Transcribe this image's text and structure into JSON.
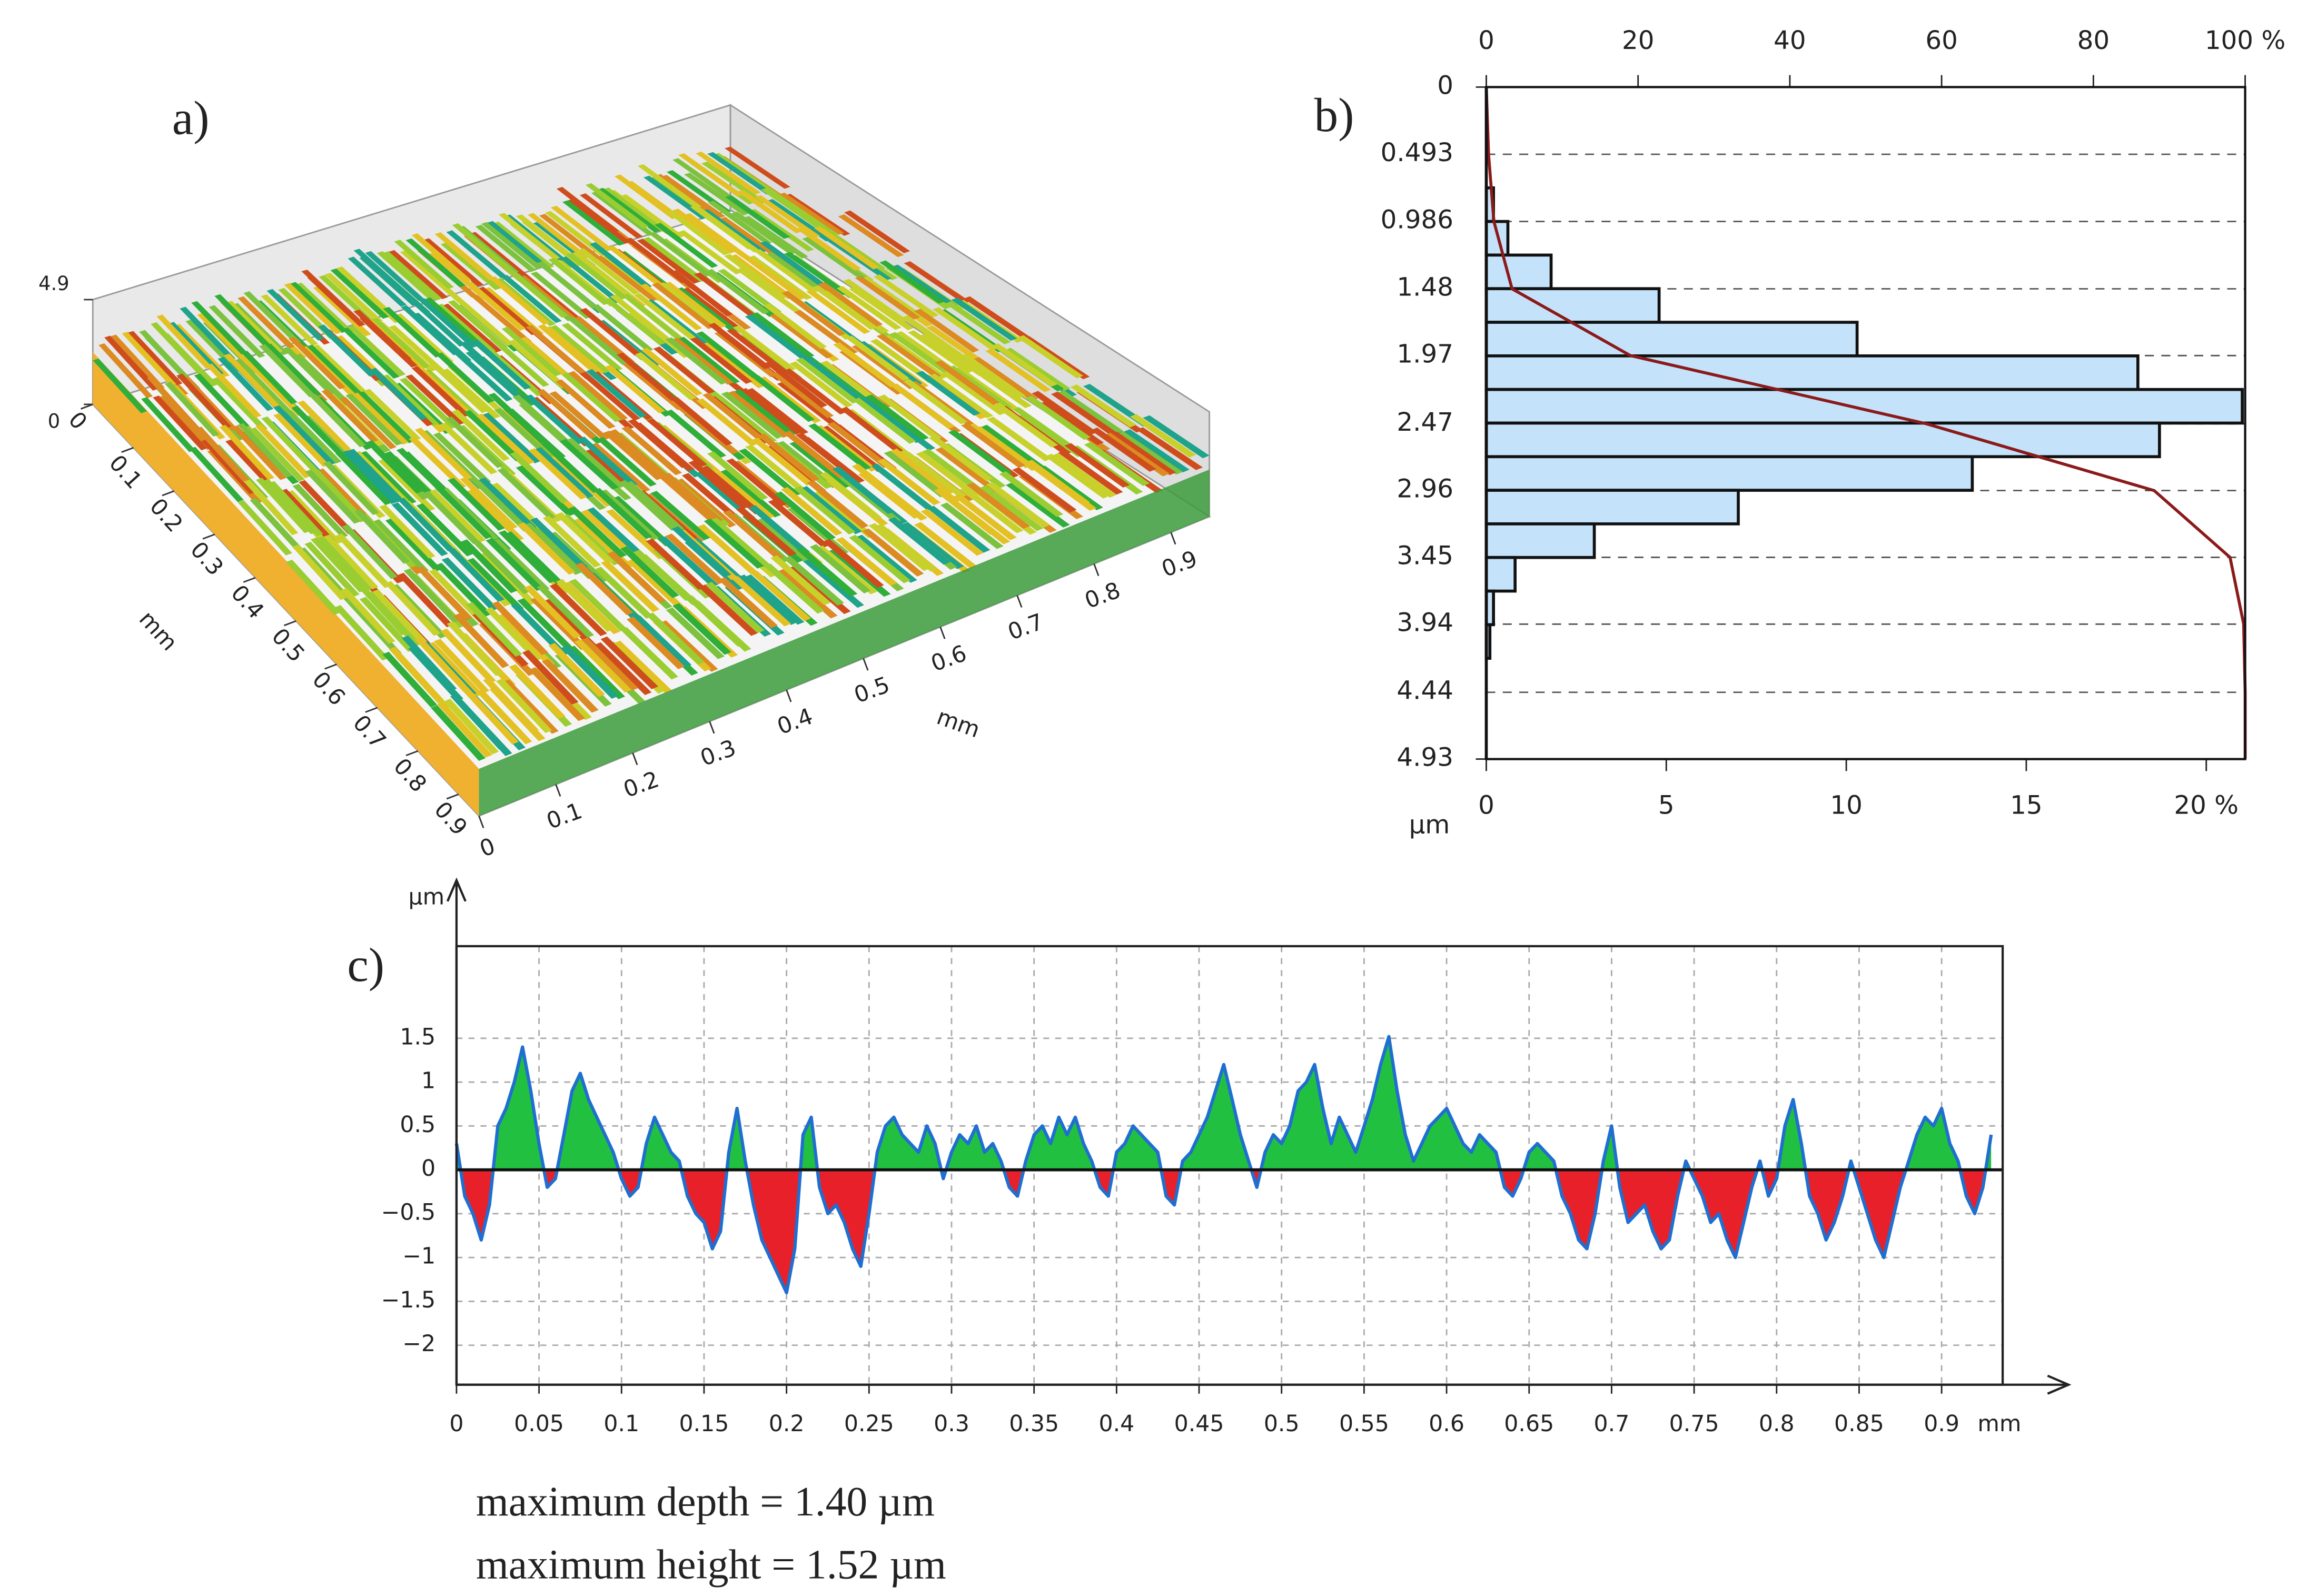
{
  "chart_data": [
    {
      "type": "surface3d",
      "panel_label": "a)",
      "xlim": [
        0,
        0.95
      ],
      "ylim": [
        0,
        0.95
      ],
      "zlim": [
        0,
        4.9
      ],
      "xticks": [
        0,
        0.1,
        0.2,
        0.3,
        0.4,
        0.5,
        0.6,
        0.7,
        0.8,
        0.9
      ],
      "yticks": [
        0,
        0.1,
        0.2,
        0.3,
        0.4,
        0.5,
        0.6,
        0.7,
        0.8,
        0.9
      ],
      "zticks": [
        0,
        4.9
      ],
      "xlabel": "mm",
      "ylabel": "mm"
    },
    {
      "type": "histogram",
      "panel_label": "b)",
      "orientation": "horizontal",
      "color": "#c4e3fb",
      "bins": [
        0,
        0.2465,
        0.493,
        0.7395,
        0.986,
        1.2325,
        1.479,
        1.7255,
        1.972,
        2.2185,
        2.465,
        2.7115,
        2.958,
        3.2045,
        3.451,
        3.6975,
        3.944,
        4.1905,
        4.437,
        4.6835,
        4.93
      ],
      "values": [
        0,
        0,
        0,
        0.2,
        0.6,
        1.8,
        4.8,
        10.3,
        18.1,
        21.0,
        18.7,
        13.5,
        7.0,
        3.0,
        0.8,
        0.2,
        0.1,
        0,
        0,
        0
      ],
      "ylim": [
        0,
        4.93
      ],
      "yticks": [
        0,
        0.493,
        0.986,
        1.48,
        1.97,
        2.47,
        2.96,
        3.45,
        3.94,
        4.44,
        4.93
      ],
      "ylabel": "µm",
      "xlim": [
        0,
        21.08
      ],
      "xticks": [
        0,
        5,
        10,
        15,
        {
          "value": 20,
          "label": "20 %"
        }
      ],
      "x2lim": [
        0,
        100
      ],
      "x2ticks": [
        0,
        20,
        40,
        60,
        80,
        {
          "value": 100,
          "label": "100 %"
        }
      ],
      "curve": {
        "color": "#8b1a1a",
        "axis": "x2",
        "y": [
          0,
          0.493,
          0.986,
          1.48,
          1.97,
          2.47,
          2.96,
          3.45,
          3.94,
          4.44,
          4.93
        ],
        "values": [
          0,
          0.3,
          1,
          3.4,
          19,
          58,
          88,
          98,
          99.8,
          100,
          100
        ]
      },
      "grid": true
    },
    {
      "type": "profile",
      "panel_label": "c)",
      "color": "#1f6fd0",
      "fill_above": "#22c040",
      "fill_below": "#e8202a",
      "xlim": [
        0,
        0.937
      ],
      "ylim": [
        -2.45,
        2.55
      ],
      "xticks": [
        0,
        0.05,
        0.1,
        0.15,
        0.2,
        0.25,
        0.3,
        0.35,
        0.4,
        0.45,
        0.5,
        0.55,
        0.6,
        0.65,
        0.7,
        0.75,
        0.8,
        0.85,
        0.9
      ],
      "yticks": [
        {
          "value": -2,
          "label": "−2"
        },
        {
          "value": -1.5,
          "label": "−1.5"
        },
        {
          "value": -1,
          "label": "−1"
        },
        {
          "value": -0.5,
          "label": "−0.5"
        },
        0,
        0.5,
        1,
        1.5
      ],
      "xlabel": "mm",
      "ylabel": "µm",
      "grid": true,
      "x": [
        0,
        0.005,
        0.01,
        0.015,
        0.02,
        0.025,
        0.03,
        0.035,
        0.04,
        0.045,
        0.05,
        0.055,
        0.06,
        0.065,
        0.07,
        0.075,
        0.08,
        0.085,
        0.09,
        0.095,
        0.1,
        0.105,
        0.11,
        0.115,
        0.12,
        0.125,
        0.13,
        0.135,
        0.14,
        0.145,
        0.15,
        0.155,
        0.16,
        0.165,
        0.17,
        0.175,
        0.18,
        0.185,
        0.19,
        0.195,
        0.2,
        0.205,
        0.21,
        0.215,
        0.22,
        0.225,
        0.23,
        0.235,
        0.24,
        0.245,
        0.25,
        0.255,
        0.26,
        0.265,
        0.27,
        0.275,
        0.28,
        0.285,
        0.29,
        0.295,
        0.3,
        0.305,
        0.31,
        0.315,
        0.32,
        0.325,
        0.33,
        0.335,
        0.34,
        0.345,
        0.35,
        0.355,
        0.36,
        0.365,
        0.37,
        0.375,
        0.38,
        0.385,
        0.39,
        0.395,
        0.4,
        0.405,
        0.41,
        0.415,
        0.42,
        0.425,
        0.43,
        0.435,
        0.44,
        0.445,
        0.45,
        0.455,
        0.46,
        0.465,
        0.47,
        0.475,
        0.48,
        0.485,
        0.49,
        0.495,
        0.5,
        0.505,
        0.51,
        0.515,
        0.52,
        0.525,
        0.53,
        0.535,
        0.54,
        0.545,
        0.55,
        0.555,
        0.56,
        0.565,
        0.57,
        0.575,
        0.58,
        0.585,
        0.59,
        0.595,
        0.6,
        0.605,
        0.61,
        0.615,
        0.62,
        0.625,
        0.63,
        0.635,
        0.64,
        0.645,
        0.65,
        0.655,
        0.66,
        0.665,
        0.67,
        0.675,
        0.68,
        0.685,
        0.69,
        0.695,
        0.7,
        0.705,
        0.71,
        0.715,
        0.72,
        0.725,
        0.73,
        0.735,
        0.74,
        0.745,
        0.75,
        0.755,
        0.76,
        0.765,
        0.77,
        0.775,
        0.78,
        0.785,
        0.79,
        0.795,
        0.8,
        0.805,
        0.81,
        0.815,
        0.82,
        0.825,
        0.83,
        0.835,
        0.84,
        0.845,
        0.85,
        0.855,
        0.86,
        0.865,
        0.87,
        0.875,
        0.88,
        0.885,
        0.89,
        0.895,
        0.9,
        0.905,
        0.91,
        0.915,
        0.92,
        0.925,
        0.93
      ],
      "values": [
        0.3,
        -0.3,
        -0.5,
        -0.8,
        -0.4,
        0.5,
        0.7,
        1.0,
        1.4,
        0.9,
        0.3,
        -0.2,
        -0.1,
        0.4,
        0.9,
        1.1,
        0.8,
        0.6,
        0.4,
        0.2,
        -0.1,
        -0.3,
        -0.2,
        0.3,
        0.6,
        0.4,
        0.2,
        0.1,
        -0.3,
        -0.5,
        -0.6,
        -0.9,
        -0.7,
        0.2,
        0.7,
        0.1,
        -0.4,
        -0.8,
        -1.0,
        -1.2,
        -1.4,
        -0.9,
        0.4,
        0.6,
        -0.2,
        -0.5,
        -0.4,
        -0.6,
        -0.9,
        -1.1,
        -0.5,
        0.2,
        0.5,
        0.6,
        0.4,
        0.3,
        0.2,
        0.5,
        0.3,
        -0.1,
        0.2,
        0.4,
        0.3,
        0.5,
        0.2,
        0.3,
        0.1,
        -0.2,
        -0.3,
        0.1,
        0.4,
        0.5,
        0.3,
        0.6,
        0.4,
        0.6,
        0.3,
        0.1,
        -0.2,
        -0.3,
        0.2,
        0.3,
        0.5,
        0.4,
        0.3,
        0.2,
        -0.3,
        -0.4,
        0.1,
        0.2,
        0.4,
        0.6,
        0.9,
        1.2,
        0.8,
        0.4,
        0.1,
        -0.2,
        0.2,
        0.4,
        0.3,
        0.5,
        0.9,
        1.0,
        1.2,
        0.7,
        0.3,
        0.6,
        0.4,
        0.2,
        0.5,
        0.8,
        1.2,
        1.52,
        0.9,
        0.4,
        0.1,
        0.3,
        0.5,
        0.6,
        0.7,
        0.5,
        0.3,
        0.2,
        0.4,
        0.3,
        0.2,
        -0.2,
        -0.3,
        -0.1,
        0.2,
        0.3,
        0.2,
        0.1,
        -0.3,
        -0.5,
        -0.8,
        -0.9,
        -0.5,
        0.1,
        0.5,
        -0.2,
        -0.6,
        -0.5,
        -0.4,
        -0.7,
        -0.9,
        -0.8,
        -0.3,
        0.1,
        -0.1,
        -0.3,
        -0.6,
        -0.5,
        -0.8,
        -1.0,
        -0.6,
        -0.2,
        0.1,
        -0.3,
        -0.1,
        0.5,
        0.8,
        0.3,
        -0.3,
        -0.5,
        -0.8,
        -0.6,
        -0.3,
        0.1,
        -0.2,
        -0.5,
        -0.8,
        -1.0,
        -0.6,
        -0.2,
        0.1,
        0.4,
        0.6,
        0.5,
        0.7,
        0.3,
        0.1,
        -0.3,
        -0.5,
        -0.2,
        0.4
      ],
      "annotations": [
        "maximum depth = 1.40 µm",
        "maximum height = 1.52 µm"
      ]
    }
  ]
}
